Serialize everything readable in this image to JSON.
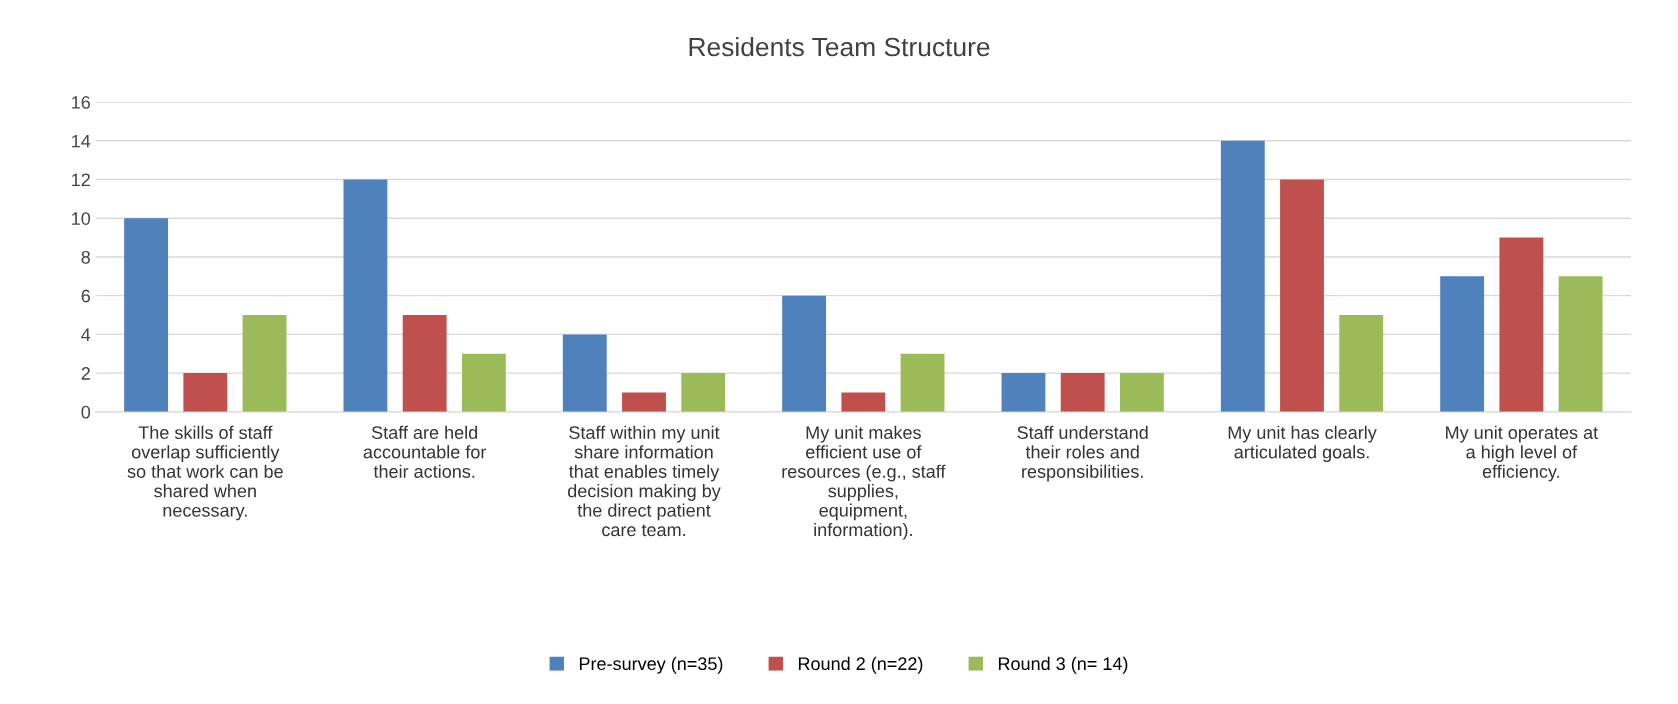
{
  "chart_data": {
    "type": "bar",
    "title": "Residents Team Structure",
    "categories": [
      "The skills of staff\noverlap sufficiently\nso that work can be\nshared when\nnecessary.",
      "Staff are held\naccountable for\ntheir actions.",
      "Staff within my unit\nshare information\nthat enables timely\ndecision making by\nthe direct patient\ncare team.",
      "My unit makes\nefficient use of\nresources (e.g., staff\nsupplies,\nequipment,\ninformation).",
      "Staff understand\ntheir roles and\nresponsibilities.",
      "My unit has clearly\narticulated goals.",
      "My unit operates at\na high level of\nefficiency."
    ],
    "series": [
      {
        "name": "Pre-survey (n=35)",
        "color": "#4f81bd",
        "values": [
          10,
          12,
          4,
          6,
          2,
          14,
          7
        ]
      },
      {
        "name": "Round 2 (n=22)",
        "color": "#c0504d",
        "values": [
          2,
          5,
          1,
          1,
          2,
          12,
          9
        ]
      },
      {
        "name": "Round 3 (n= 14)",
        "color": "#9bbb59",
        "values": [
          5,
          3,
          2,
          3,
          2,
          5,
          7
        ]
      }
    ],
    "ylim": [
      0,
      16
    ],
    "yticks": [
      0,
      2,
      4,
      6,
      8,
      10,
      12,
      14,
      16
    ],
    "grid": "y",
    "legend": "bottom"
  }
}
